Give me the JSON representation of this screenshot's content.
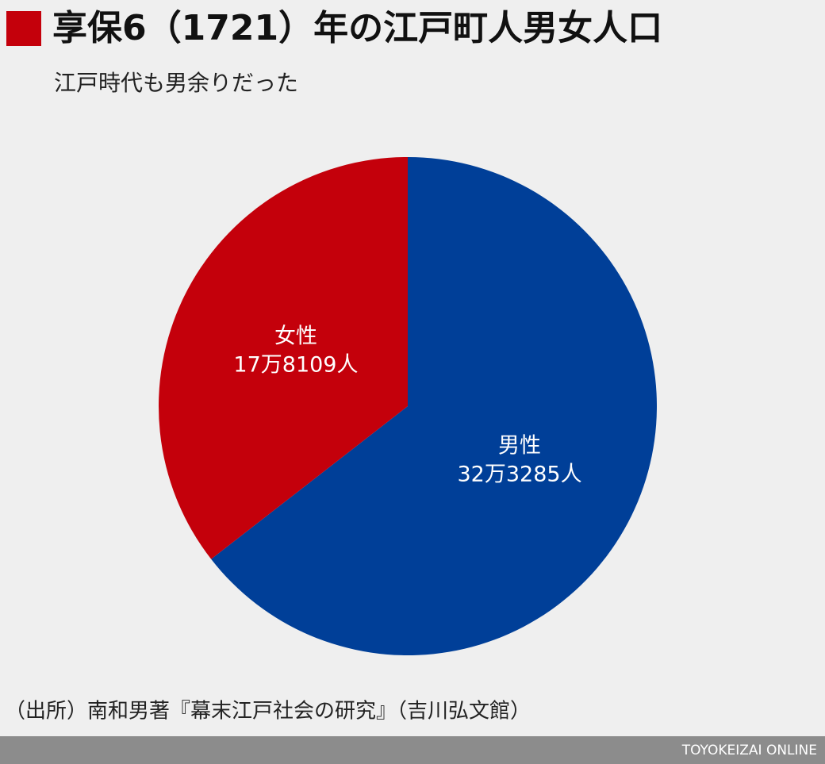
{
  "chart_data": {
    "type": "pie",
    "title": "享保6（1721）年の江戸町人男女人口",
    "subtitle": "江戸時代も男余りだった",
    "categories": [
      "男性",
      "女性"
    ],
    "values": [
      323285,
      178109
    ],
    "value_labels": [
      "32万3285人",
      "17万8109人"
    ],
    "colors": [
      "#003f98",
      "#c4000b"
    ],
    "source": "（出所）南和男著『幕末江戸社会の研究』（吉川弘文館）",
    "footer": "TOYOKEIZAI ONLINE"
  }
}
